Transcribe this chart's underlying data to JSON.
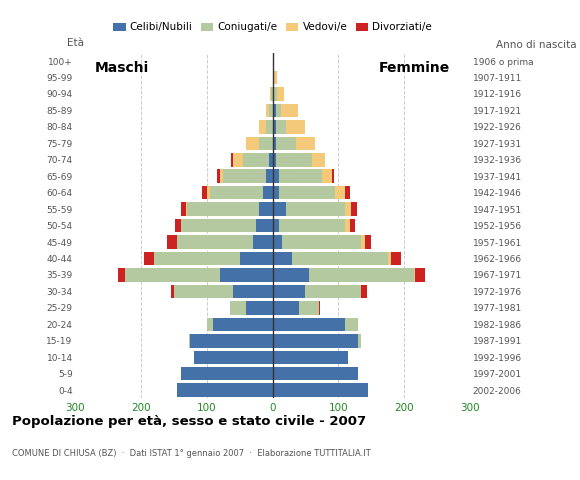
{
  "age_groups": [
    "0-4",
    "5-9",
    "10-14",
    "15-19",
    "20-24",
    "25-29",
    "30-34",
    "35-39",
    "40-44",
    "45-49",
    "50-54",
    "55-59",
    "60-64",
    "65-69",
    "70-74",
    "75-79",
    "80-84",
    "85-89",
    "90-94",
    "95-99",
    "100+"
  ],
  "birth_years": [
    "2002-2006",
    "1997-2001",
    "1992-1996",
    "1987-1991",
    "1982-1986",
    "1977-1981",
    "1972-1976",
    "1967-1971",
    "1962-1966",
    "1957-1961",
    "1952-1956",
    "1947-1951",
    "1942-1946",
    "1937-1941",
    "1932-1936",
    "1927-1931",
    "1922-1926",
    "1917-1921",
    "1912-1916",
    "1907-1911",
    "1906 o prima"
  ],
  "males": {
    "celibe": [
      145,
      140,
      120,
      125,
      90,
      40,
      60,
      80,
      50,
      30,
      25,
      20,
      15,
      10,
      5,
      0,
      0,
      0,
      0,
      0,
      0
    ],
    "coniugato": [
      0,
      0,
      0,
      2,
      10,
      25,
      90,
      145,
      130,
      115,
      115,
      110,
      80,
      65,
      40,
      20,
      10,
      5,
      2,
      0,
      0
    ],
    "vedovo": [
      0,
      0,
      0,
      0,
      0,
      0,
      0,
      0,
      0,
      0,
      0,
      2,
      5,
      5,
      15,
      20,
      10,
      5,
      2,
      0,
      0
    ],
    "divorziato": [
      0,
      0,
      0,
      0,
      0,
      0,
      5,
      10,
      15,
      15,
      8,
      8,
      8,
      4,
      3,
      0,
      0,
      0,
      0,
      0,
      0
    ]
  },
  "females": {
    "nubile": [
      145,
      130,
      115,
      130,
      110,
      40,
      50,
      55,
      30,
      15,
      10,
      20,
      10,
      10,
      5,
      5,
      5,
      5,
      2,
      2,
      0
    ],
    "coniugata": [
      0,
      0,
      0,
      5,
      20,
      30,
      85,
      160,
      145,
      120,
      100,
      90,
      85,
      65,
      55,
      30,
      15,
      8,
      5,
      0,
      0
    ],
    "vedova": [
      0,
      0,
      0,
      0,
      0,
      0,
      0,
      2,
      5,
      5,
      8,
      10,
      15,
      15,
      20,
      30,
      30,
      25,
      10,
      4,
      2
    ],
    "divorziata": [
      0,
      0,
      0,
      0,
      0,
      2,
      8,
      15,
      15,
      10,
      8,
      8,
      8,
      3,
      0,
      0,
      0,
      0,
      0,
      0,
      0
    ]
  },
  "colors": {
    "celibe_nubile": "#4472a8",
    "coniugato_coniugata": "#b5c9a0",
    "vedovo_vedova": "#f5c97a",
    "divorziato_divorziata": "#cc2222"
  },
  "title": "Popolazione per età, sesso e stato civile - 2007",
  "subtitle": "COMUNE DI CHIUSA (BZ)  ·  Dati ISTAT 1° gennaio 2007  ·  Elaborazione TUTTITALIA.IT",
  "xlabel_left": "Maschi",
  "xlabel_right": "Femmine",
  "ylabel_left": "Età",
  "ylabel_right": "Anno di nascita",
  "xlim": 300,
  "background_color": "#ffffff",
  "legend_labels": [
    "Celibi/Nubili",
    "Coniugati/e",
    "Vedovi/e",
    "Divorziati/e"
  ]
}
